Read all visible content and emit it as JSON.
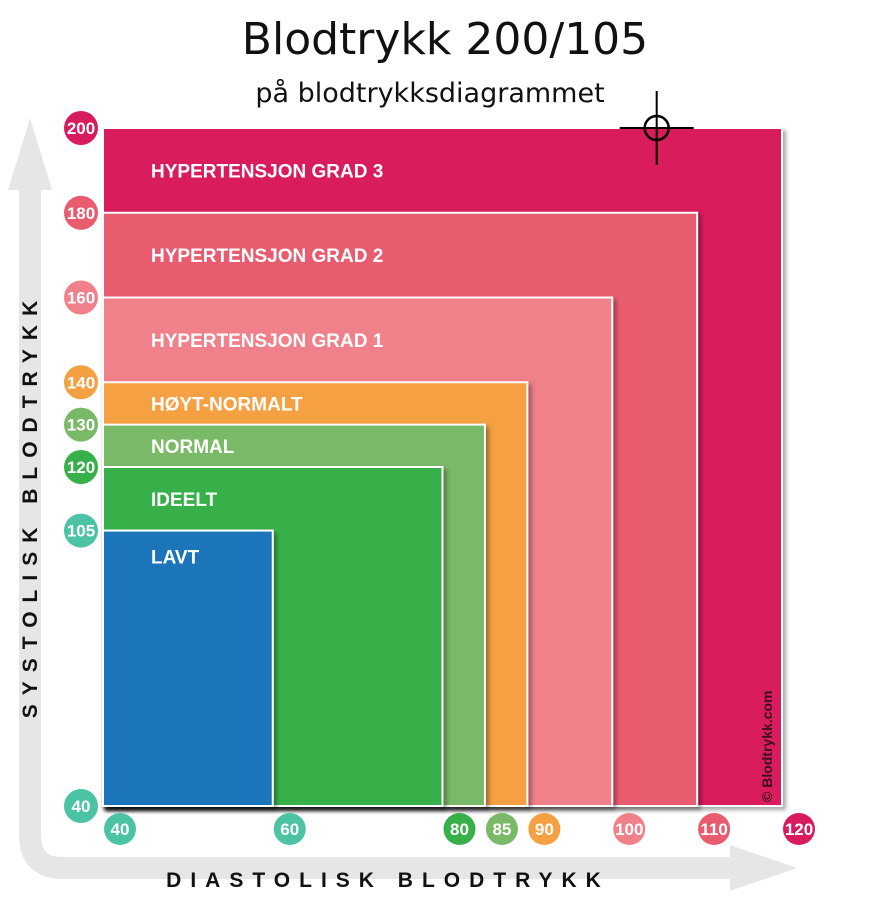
{
  "title": "Blodtrykk 200/105",
  "subtitle": "på blodtrykksdiagrammet",
  "copyright": "© Blodtrykk.com",
  "chart_data": {
    "type": "area",
    "xlabel": "DIASTOLISK BLODTRYKK",
    "ylabel": "SYSTOLISK BLODTRYKK",
    "xlim": [
      40,
      120
    ],
    "ylim": [
      40,
      200
    ],
    "x_ticks": [
      {
        "value": 40,
        "label": "40",
        "color": "#4cc3a4"
      },
      {
        "value": 60,
        "label": "60",
        "color": "#4cc3a4"
      },
      {
        "value": 80,
        "label": "80",
        "color": "#38b04a"
      },
      {
        "value": 85,
        "label": "85",
        "color": "#79b968"
      },
      {
        "value": 90,
        "label": "90",
        "color": "#f5a043"
      },
      {
        "value": 100,
        "label": "100",
        "color": "#f08089"
      },
      {
        "value": 110,
        "label": "110",
        "color": "#e95c6f"
      },
      {
        "value": 120,
        "label": "120",
        "color": "#d81b5c"
      }
    ],
    "y_ticks": [
      {
        "value": 200,
        "label": "200",
        "color": "#d81b5c"
      },
      {
        "value": 180,
        "label": "180",
        "color": "#e95c6f"
      },
      {
        "value": 160,
        "label": "160",
        "color": "#f08089"
      },
      {
        "value": 140,
        "label": "140",
        "color": "#f5a043"
      },
      {
        "value": 130,
        "label": "130",
        "color": "#79b968"
      },
      {
        "value": 120,
        "label": "120",
        "color": "#38b04a"
      },
      {
        "value": 105,
        "label": "105",
        "color": "#4cc3a4"
      },
      {
        "value": 40,
        "label": "40",
        "color": "#4cc3a4"
      }
    ],
    "zones": [
      {
        "name": "HYPERTENSJON GRAD 3",
        "max_diastolic": 120,
        "max_systolic": 200,
        "color": "#d81b5c"
      },
      {
        "name": "HYPERTENSJON GRAD 2",
        "max_diastolic": 110,
        "max_systolic": 180,
        "color": "#e95c6f"
      },
      {
        "name": "HYPERTENSJON GRAD 1",
        "max_diastolic": 100,
        "max_systolic": 160,
        "color": "#f08089"
      },
      {
        "name": "HØYT-NORMALT",
        "max_diastolic": 90,
        "max_systolic": 140,
        "color": "#f5a043"
      },
      {
        "name": "NORMAL",
        "max_diastolic": 85,
        "max_systolic": 130,
        "color": "#79b968"
      },
      {
        "name": "IDEELT",
        "max_diastolic": 80,
        "max_systolic": 120,
        "color": "#38b04a"
      },
      {
        "name": "LAVT",
        "max_diastolic": 60,
        "max_systolic": 105,
        "color": "#1f74b8"
      }
    ],
    "marker": {
      "diastolic": 105,
      "systolic": 200
    }
  }
}
